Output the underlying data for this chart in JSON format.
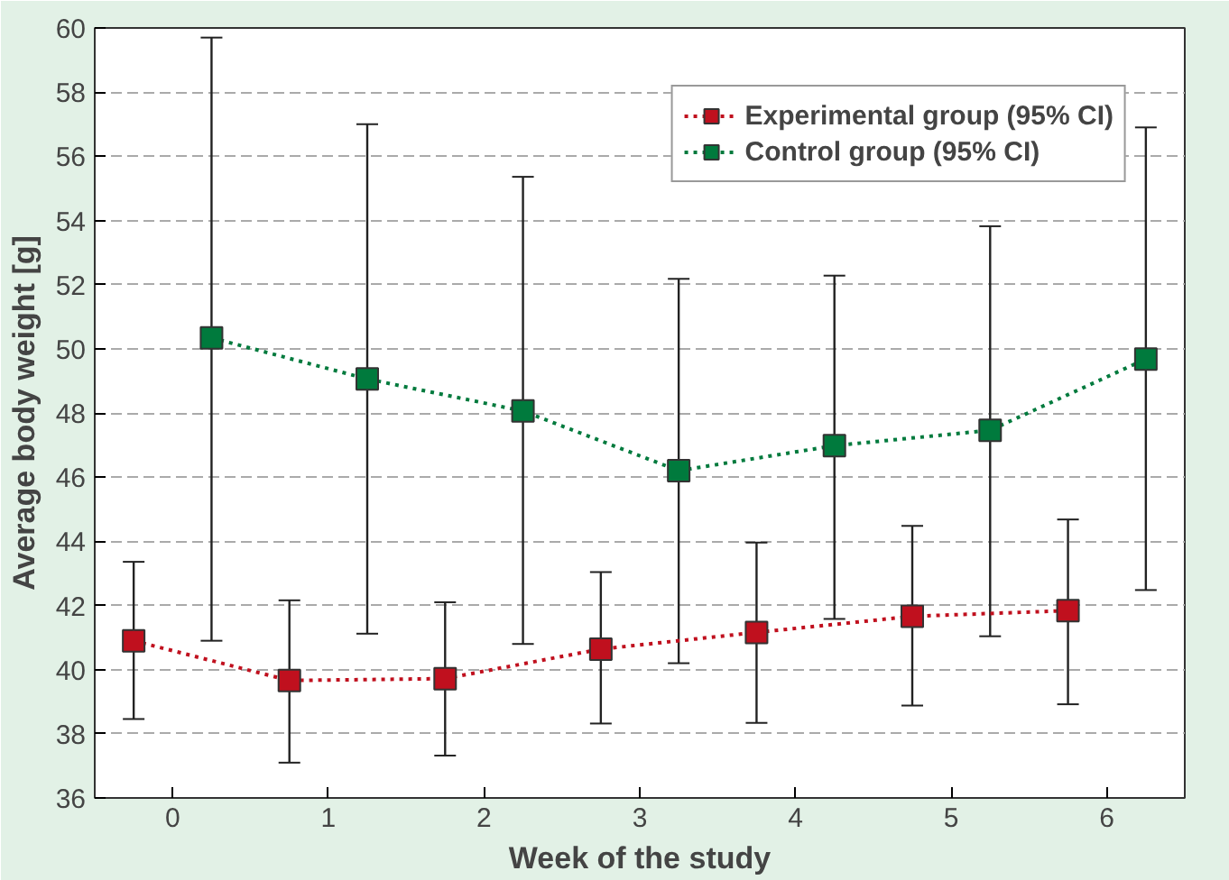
{
  "chart_data": {
    "type": "line",
    "xlabel": "Week of the study",
    "ylabel": "Average body weight [g]",
    "xlim": [
      -0.5,
      6.5
    ],
    "xticks": [
      0,
      1,
      2,
      3,
      4,
      5,
      6
    ],
    "ylim": [
      36,
      60
    ],
    "yticks": [
      36,
      38,
      40,
      42,
      44,
      46,
      48,
      50,
      52,
      54,
      56,
      58,
      60
    ],
    "grid": "y",
    "legend": "top right",
    "marker": "square",
    "line_style": "dotted",
    "series": [
      {
        "name": "Experimental group (95% CI)",
        "color": "#c0101e",
        "x": [
          -0.25,
          0.75,
          1.75,
          2.75,
          3.75,
          4.75,
          5.75
        ],
        "values": [
          40.9,
          39.66,
          39.72,
          40.64,
          41.16,
          41.66,
          41.84
        ],
        "errors": [
          [
            38.46,
            43.36
          ],
          [
            37.1,
            42.16
          ],
          [
            37.32,
            42.1
          ],
          [
            38.32,
            43.04
          ],
          [
            38.34,
            43.96
          ],
          [
            38.88,
            44.48
          ],
          [
            38.92,
            44.68
          ]
        ]
      },
      {
        "name": "Control group (95% CI)",
        "color": "#007a3d",
        "x": [
          0.25,
          1.25,
          2.25,
          3.25,
          4.25,
          5.25,
          6.25
        ],
        "values": [
          50.34,
          49.06,
          48.06,
          46.2,
          46.98,
          47.46,
          49.68
        ],
        "errors": [
          [
            40.9,
            59.7
          ],
          [
            41.12,
            57.0
          ],
          [
            40.8,
            55.36
          ],
          [
            40.2,
            52.18
          ],
          [
            41.58,
            52.28
          ],
          [
            41.04,
            53.82
          ],
          [
            42.48,
            56.9
          ]
        ]
      }
    ]
  }
}
